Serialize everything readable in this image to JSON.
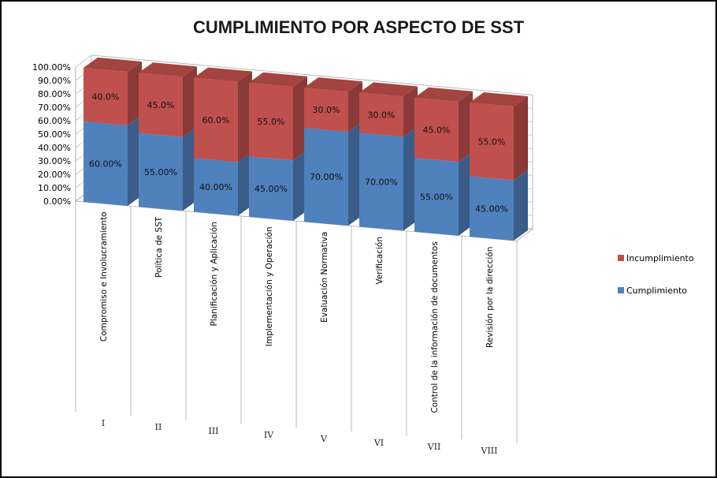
{
  "colors": {
    "cumplimiento": "#4F81BD",
    "incumplimiento": "#C0504D"
  },
  "chart_data": {
    "type": "bar",
    "stacked": true,
    "style": "3d-column",
    "title": "CUMPLIMIENTO POR ASPECTO DE SST",
    "xlabel": "",
    "ylabel": "",
    "ylim": [
      0,
      100
    ],
    "ytick_labels": [
      "0.00%",
      "10.00%",
      "20.00%",
      "30.00%",
      "40.00%",
      "50.00%",
      "60.00%",
      "70.00%",
      "80.00%",
      "90.00%",
      "100.00%"
    ],
    "grid": true,
    "legend_position": "right",
    "categories": [
      "Compromiso e Involucramiento",
      "Política de SST",
      "Planificación y Aplicación",
      "Implementación y Operación",
      "Evaluación Normativa",
      "Verificación",
      "Control de la información de documentos",
      "Revisión por la dirección"
    ],
    "roman_labels": [
      "I",
      "II",
      "III",
      "IV",
      "V",
      "VI",
      "VII",
      "VIII"
    ],
    "series": [
      {
        "name": "Cumplimiento",
        "values": [
          60,
          55,
          40,
          45,
          70,
          70,
          55,
          45
        ],
        "labels": [
          "60.00%",
          "55.00%",
          "40.00%",
          "45.00%",
          "70.00%",
          "70.00%",
          "55.00%",
          "45.00%"
        ]
      },
      {
        "name": "Incumplimiento",
        "values": [
          40,
          45,
          60,
          55,
          30,
          30,
          45,
          55
        ],
        "labels": [
          "40.0%",
          "45.0%",
          "60.0%",
          "55.0%",
          "30.0%",
          "30.0%",
          "45.0%",
          "55.0%"
        ]
      }
    ]
  },
  "legend": {
    "items": [
      {
        "name": "Incumplimiento"
      },
      {
        "name": "Cumplimiento"
      }
    ]
  }
}
